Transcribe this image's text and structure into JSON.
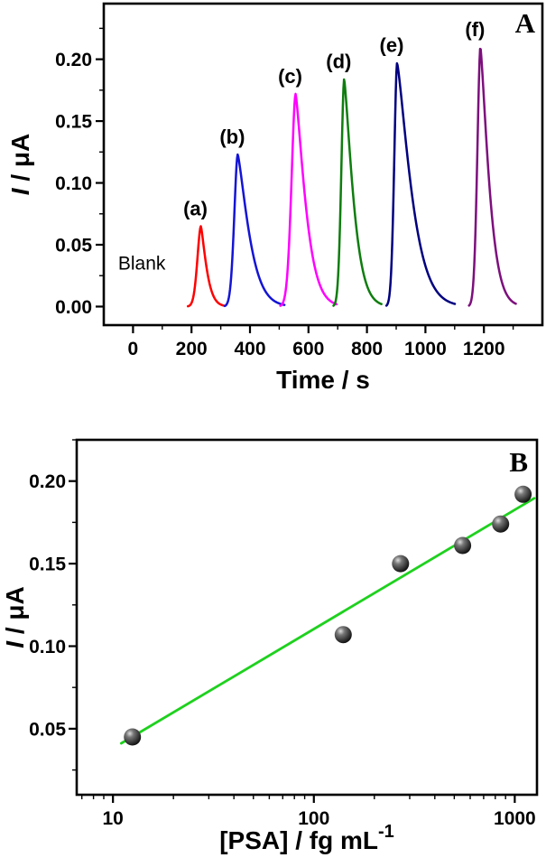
{
  "figure": {
    "panel_count": 2
  },
  "chart_data": [
    {
      "panel": "A",
      "type": "line",
      "corner_label": "A",
      "xlabel": "Time / s",
      "ylabel_italic": "I",
      "ylabel_rest": " / μA",
      "x_range": [
        -100,
        1400
      ],
      "y_range": [
        -0.015,
        0.245
      ],
      "x_ticks": [
        0,
        200,
        400,
        600,
        800,
        1000,
        1200
      ],
      "x_minor_ticks": [
        100,
        300,
        500,
        700,
        900,
        1100,
        1300
      ],
      "y_tick_labels": [
        "0.00",
        "0.05",
        "0.10",
        "0.15",
        "0.20"
      ],
      "y_tick_values": [
        0,
        0.05,
        0.1,
        0.15,
        0.2
      ],
      "y_minor_ticks": [
        0.025,
        0.075,
        0.125,
        0.175,
        0.225
      ],
      "annotation": {
        "text": "Blank",
        "x": 30,
        "y": 0.03
      },
      "series": [
        {
          "label": "(a)",
          "color": "#ff0000",
          "peak_time": 232,
          "peak_current": 0.065,
          "rise_s": 17,
          "fall_s": 25
        },
        {
          "label": "(b)",
          "color": "#1414d6",
          "peak_time": 358,
          "peak_current": 0.123,
          "rise_s": 17,
          "fall_s": 50
        },
        {
          "label": "(c)",
          "color": "#ff00ff",
          "peak_time": 556,
          "peak_current": 0.172,
          "rise_s": 20,
          "fall_s": 44
        },
        {
          "label": "(d)",
          "color": "#0e7d0e",
          "peak_time": 722,
          "peak_current": 0.184,
          "rise_s": 14,
          "fall_s": 40
        },
        {
          "label": "(e)",
          "color": "#000080",
          "peak_time": 903,
          "peak_current": 0.197,
          "rise_s": 14,
          "fall_s": 62
        },
        {
          "label": "(f)",
          "color": "#7d0f7d",
          "peak_time": 1188,
          "peak_current": 0.21,
          "rise_s": 15,
          "fall_s": 38
        }
      ]
    },
    {
      "panel": "B",
      "type": "scatter",
      "corner_label": "B",
      "xlabel_main": "[PSA] / fg mL",
      "xlabel_sup": "-1",
      "ylabel_italic": "I",
      "ylabel_rest": " / μA",
      "x_scale": "log",
      "x_range": [
        6.6,
        1290
      ],
      "y_range": [
        0.01,
        0.225
      ],
      "x_ticks": [
        10,
        100,
        1000
      ],
      "x_minor_ticks": [
        7,
        8,
        9,
        20,
        30,
        40,
        50,
        60,
        70,
        80,
        90,
        200,
        300,
        400,
        500,
        600,
        700,
        800,
        900
      ],
      "y_tick_labels": [
        "0.05",
        "0.10",
        "0.15",
        "0.20"
      ],
      "y_tick_values": [
        0.05,
        0.1,
        0.15,
        0.2
      ],
      "y_minor_ticks": [
        0.025,
        0.075,
        0.125,
        0.175,
        0.225
      ],
      "points": [
        {
          "x": 12.5,
          "y": 0.045
        },
        {
          "x": 140,
          "y": 0.107
        },
        {
          "x": 270,
          "y": 0.15
        },
        {
          "x": 550,
          "y": 0.161
        },
        {
          "x": 850,
          "y": 0.174
        },
        {
          "x": 1100,
          "y": 0.192
        }
      ],
      "fit_line": {
        "color": "#1ed11e",
        "x_start": 11,
        "x_end": 1250,
        "intercept": -0.034,
        "slope_per_decade": 0.0722
      }
    }
  ],
  "colors": {
    "axis": "#000000",
    "background": "#ffffff"
  }
}
